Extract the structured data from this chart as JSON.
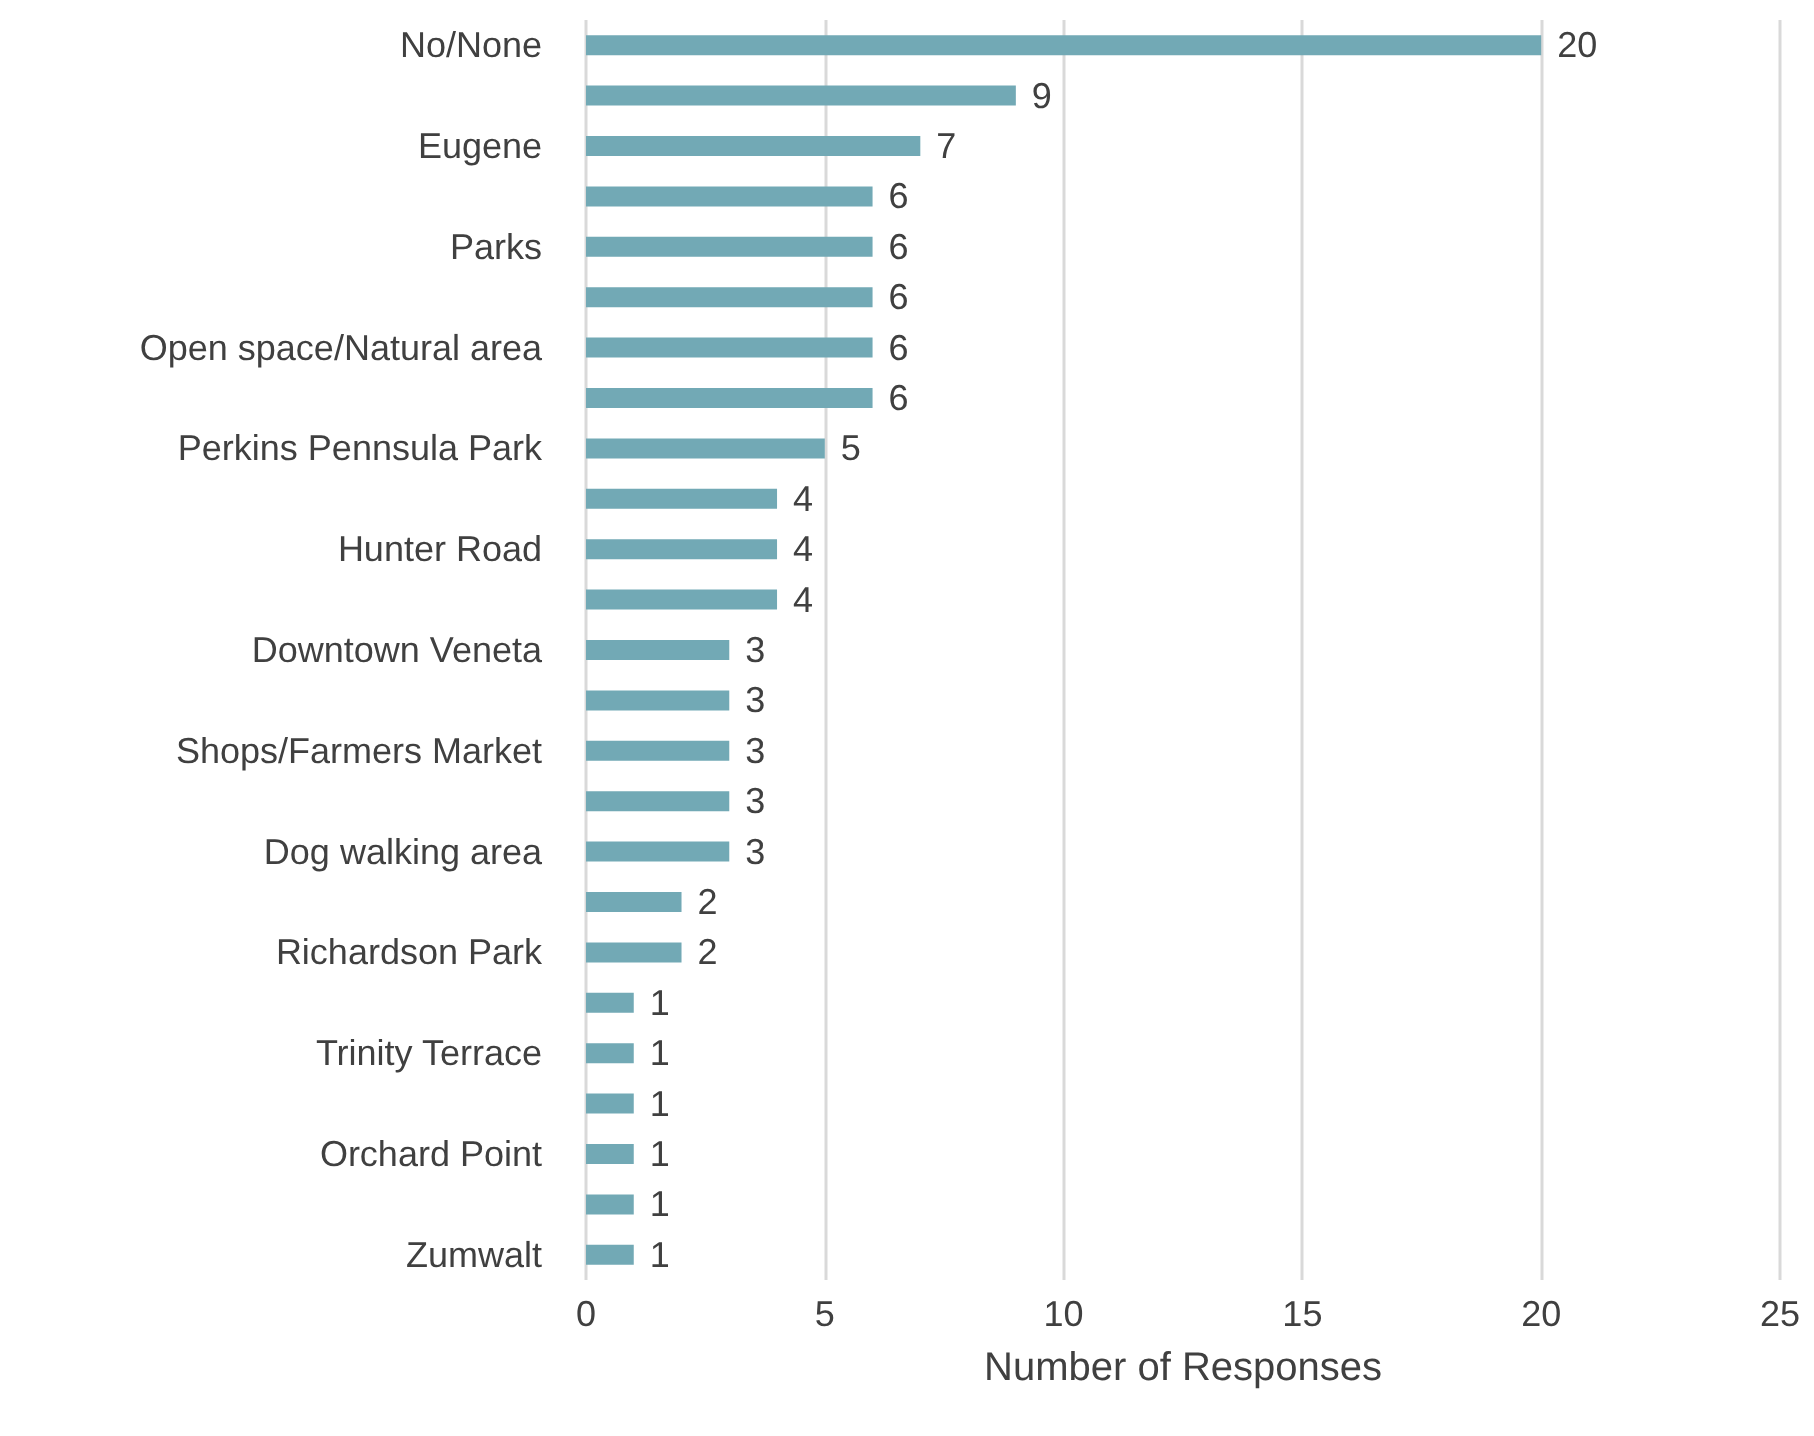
{
  "chart_data": {
    "type": "bar",
    "orientation": "horizontal",
    "xlabel": "Number of Responses",
    "categories": [
      "No/None",
      null,
      "Eugene",
      null,
      "Parks",
      null,
      "Open space/Natural area",
      null,
      "Perkins Pennsula Park",
      null,
      "Hunter Road",
      null,
      "Downtown Veneta",
      null,
      "Shops/Farmers Market",
      null,
      "Dog walking area",
      null,
      "Richardson Park",
      null,
      "Trinity Terrace",
      null,
      "Orchard Point",
      null,
      "Zumwalt"
    ],
    "values": [
      20,
      9,
      7,
      6,
      6,
      6,
      6,
      6,
      5,
      4,
      4,
      4,
      3,
      3,
      3,
      3,
      3,
      2,
      2,
      1,
      1,
      1,
      1,
      1,
      1
    ],
    "color": "#72a9b5",
    "xlim": [
      0,
      25
    ],
    "xticks": [
      0,
      5,
      10,
      15,
      20,
      25
    ],
    "grid": "x",
    "data_labels": true
  }
}
